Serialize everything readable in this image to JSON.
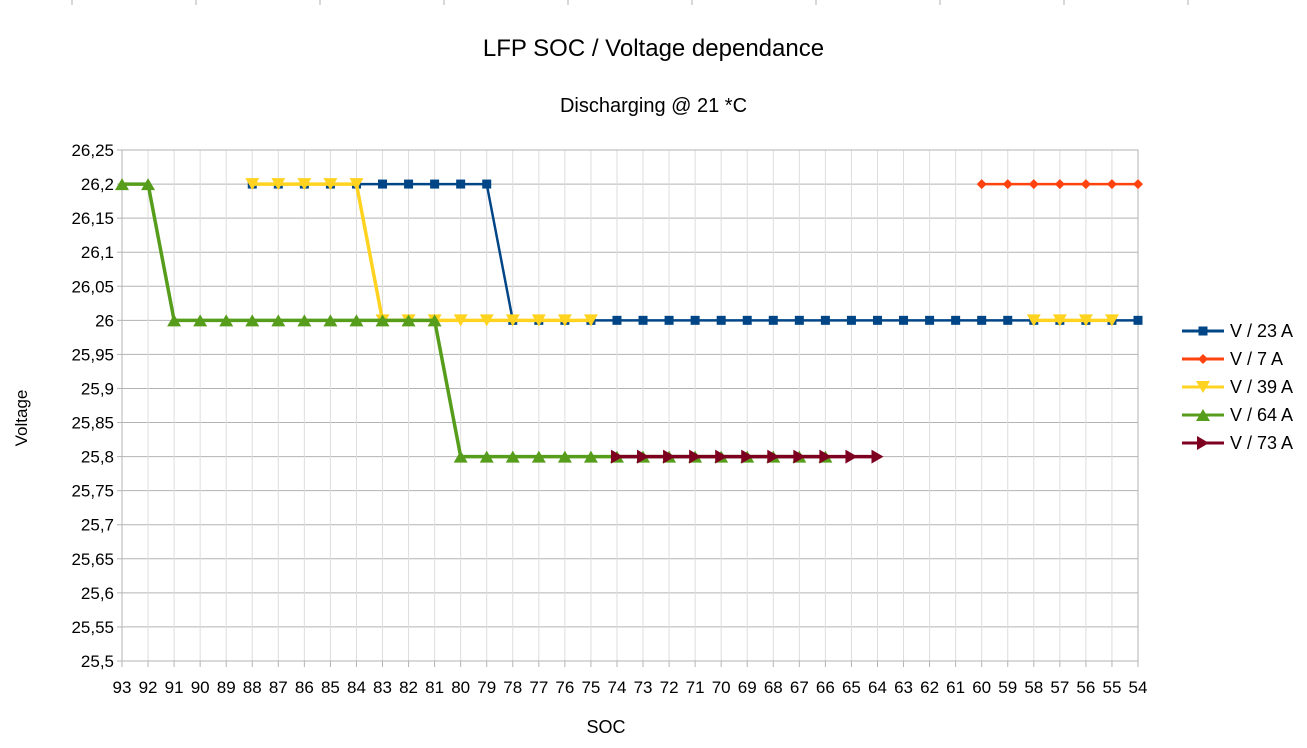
{
  "chart_data": {
    "type": "line",
    "title": "LFP SOC / Voltage dependance",
    "subtitle": "Discharging @ 21 *C",
    "xlabel": "SOC",
    "ylabel": "Voltage",
    "categories": [
      "93",
      "92",
      "91",
      "90",
      "89",
      "88",
      "87",
      "86",
      "85",
      "84",
      "83",
      "82",
      "81",
      "80",
      "79",
      "78",
      "77",
      "76",
      "75",
      "74",
      "73",
      "72",
      "71",
      "70",
      "69",
      "68",
      "67",
      "66",
      "65",
      "64",
      "63",
      "62",
      "61",
      "60",
      "59",
      "58",
      "57",
      "56",
      "55",
      "54"
    ],
    "ylim": [
      25.5,
      26.25
    ],
    "yticks": [
      25.5,
      25.55,
      25.6,
      25.65,
      25.7,
      25.75,
      25.8,
      25.85,
      25.9,
      25.95,
      26,
      26.05,
      26.1,
      26.15,
      26.2,
      26.25
    ],
    "ytick_labels": [
      "25,5",
      "25,55",
      "25,6",
      "25,65",
      "25,7",
      "25,75",
      "25,8",
      "25,85",
      "25,9",
      "25,95",
      "26",
      "26,05",
      "26,1",
      "26,15",
      "26,2",
      "26,25"
    ],
    "grid": true,
    "legend_position": "right",
    "series": [
      {
        "name": "V / 23 A",
        "color": "#004586",
        "marker": "square",
        "values": [
          null,
          null,
          null,
          null,
          null,
          26.2,
          26.2,
          26.2,
          26.2,
          26.2,
          26.2,
          26.2,
          26.2,
          26.2,
          26.2,
          26.0,
          26.0,
          26.0,
          26.0,
          26.0,
          26.0,
          26.0,
          26.0,
          26.0,
          26.0,
          26.0,
          26.0,
          26.0,
          26.0,
          26.0,
          26.0,
          26.0,
          26.0,
          26.0,
          26.0,
          26.0,
          26.0,
          26.0,
          26.0,
          26.0
        ]
      },
      {
        "name": "V / 7 A",
        "color": "#ff420e",
        "marker": "diamond",
        "values": [
          null,
          null,
          null,
          null,
          null,
          null,
          null,
          null,
          null,
          null,
          null,
          null,
          null,
          null,
          null,
          null,
          null,
          null,
          null,
          null,
          null,
          null,
          null,
          null,
          null,
          null,
          null,
          null,
          null,
          null,
          null,
          null,
          null,
          26.2,
          26.2,
          26.2,
          26.2,
          26.2,
          26.2,
          26.2
        ]
      },
      {
        "name": "V / 39 A",
        "color": "#ffd320",
        "marker": "triangle-down",
        "values": [
          null,
          null,
          null,
          null,
          null,
          26.2,
          26.2,
          26.2,
          26.2,
          26.2,
          26.0,
          26.0,
          26.0,
          26.0,
          26.0,
          26.0,
          26.0,
          26.0,
          26.0,
          null,
          null,
          null,
          null,
          null,
          null,
          null,
          null,
          null,
          null,
          null,
          null,
          null,
          null,
          null,
          null,
          26.0,
          26.0,
          26.0,
          26.0,
          null
        ]
      },
      {
        "name": "V / 64 A",
        "color": "#579d1c",
        "marker": "triangle-up",
        "values": [
          26.2,
          26.2,
          26.0,
          26.0,
          26.0,
          26.0,
          26.0,
          26.0,
          26.0,
          26.0,
          26.0,
          26.0,
          26.0,
          25.8,
          25.8,
          25.8,
          25.8,
          25.8,
          25.8,
          25.8,
          25.8,
          25.8,
          25.8,
          25.8,
          25.8,
          25.8,
          25.8,
          25.8,
          null,
          null,
          null,
          null,
          null,
          null,
          null,
          null,
          null,
          null,
          null,
          null
        ]
      },
      {
        "name": "V / 73 A",
        "color": "#7e0021",
        "marker": "triangle-right",
        "values": [
          null,
          null,
          null,
          null,
          null,
          null,
          null,
          null,
          null,
          null,
          null,
          null,
          null,
          null,
          null,
          null,
          null,
          null,
          null,
          25.8,
          25.8,
          25.8,
          25.8,
          25.8,
          25.8,
          25.8,
          25.8,
          25.8,
          25.8,
          25.8,
          null,
          null,
          null,
          null,
          null,
          null,
          null,
          null,
          null,
          null
        ]
      }
    ]
  }
}
